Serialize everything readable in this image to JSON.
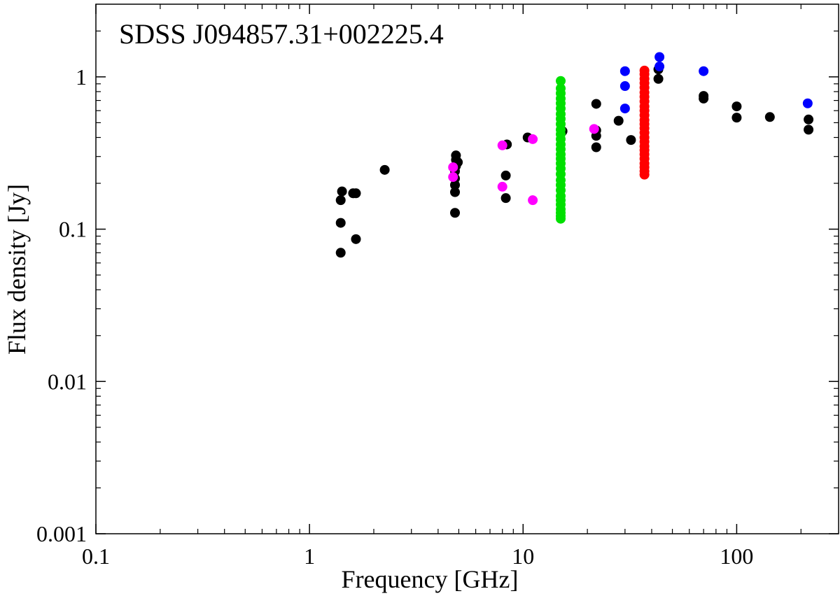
{
  "chart_data": {
    "type": "scatter",
    "title": "SDSS J094857.31+002225.4",
    "xlabel": "Frequency [GHz]",
    "ylabel": "Flux density [Jy]",
    "xscale": "log",
    "yscale": "log",
    "xlim": [
      0.1,
      300
    ],
    "ylim": [
      0.001,
      3
    ],
    "x_ticks": [
      {
        "value": 0.1,
        "label": "0.1"
      },
      {
        "value": 1,
        "label": "1"
      },
      {
        "value": 10,
        "label": "10"
      },
      {
        "value": 100,
        "label": "100"
      }
    ],
    "y_ticks": [
      {
        "value": 0.001,
        "label": "0.001"
      },
      {
        "value": 0.01,
        "label": "0.01"
      },
      {
        "value": 0.1,
        "label": "0.1"
      },
      {
        "value": 1,
        "label": "1"
      }
    ],
    "grid": false,
    "series": [
      {
        "color": "#000000",
        "points": [
          [
            1.4,
            0.07
          ],
          [
            1.4,
            0.11
          ],
          [
            1.4,
            0.155
          ],
          [
            1.42,
            0.177
          ],
          [
            1.6,
            0.172
          ],
          [
            1.65,
            0.086
          ],
          [
            1.65,
            0.172
          ],
          [
            2.25,
            0.245
          ],
          [
            4.8,
            0.128
          ],
          [
            4.8,
            0.175
          ],
          [
            4.8,
            0.195
          ],
          [
            4.8,
            0.215
          ],
          [
            4.8,
            0.24
          ],
          [
            4.85,
            0.26
          ],
          [
            4.85,
            0.285
          ],
          [
            4.85,
            0.305
          ],
          [
            4.95,
            0.275
          ],
          [
            8.3,
            0.16
          ],
          [
            8.3,
            0.225
          ],
          [
            8.4,
            0.36
          ],
          [
            10.5,
            0.4
          ],
          [
            15.3,
            0.44
          ],
          [
            22,
            0.345
          ],
          [
            22,
            0.41
          ],
          [
            22,
            0.445
          ],
          [
            22,
            0.665
          ],
          [
            28,
            0.515
          ],
          [
            32,
            0.385
          ],
          [
            43,
            0.97
          ],
          [
            43,
            1.12
          ],
          [
            70,
            0.72
          ],
          [
            70,
            0.75
          ],
          [
            100,
            0.54
          ],
          [
            100,
            0.64
          ],
          [
            143,
            0.545
          ],
          [
            217,
            0.45
          ],
          [
            217,
            0.525
          ]
        ]
      },
      {
        "color": "#ff00ff",
        "points": [
          [
            4.7,
            0.22
          ],
          [
            4.7,
            0.255
          ],
          [
            8.0,
            0.19
          ],
          [
            8.0,
            0.355
          ],
          [
            11.1,
            0.155
          ],
          [
            11.1,
            0.39
          ],
          [
            21.5,
            0.455
          ]
        ]
      },
      {
        "color": "#00e000",
        "points": [
          [
            15,
            0.117
          ],
          [
            15,
            0.122
          ],
          [
            15,
            0.128
          ],
          [
            15,
            0.135
          ],
          [
            15,
            0.145
          ],
          [
            15,
            0.155
          ],
          [
            15,
            0.165
          ],
          [
            15,
            0.18
          ],
          [
            15,
            0.195
          ],
          [
            15,
            0.21
          ],
          [
            15,
            0.23
          ],
          [
            15,
            0.25
          ],
          [
            15,
            0.27
          ],
          [
            15,
            0.29
          ],
          [
            15,
            0.31
          ],
          [
            15,
            0.335
          ],
          [
            15,
            0.36
          ],
          [
            15,
            0.39
          ],
          [
            15,
            0.42
          ],
          [
            15,
            0.45
          ],
          [
            15,
            0.49
          ],
          [
            15,
            0.53
          ],
          [
            15,
            0.57
          ],
          [
            15,
            0.62
          ],
          [
            15,
            0.67
          ],
          [
            15,
            0.72
          ],
          [
            15,
            0.78
          ],
          [
            15,
            0.84
          ],
          [
            15,
            0.94
          ]
        ]
      },
      {
        "color": "#ff0000",
        "points": [
          [
            37,
            0.228
          ],
          [
            37,
            0.24
          ],
          [
            37,
            0.255
          ],
          [
            37,
            0.27
          ],
          [
            37,
            0.29
          ],
          [
            37,
            0.31
          ],
          [
            37,
            0.33
          ],
          [
            37,
            0.35
          ],
          [
            37,
            0.375
          ],
          [
            37,
            0.4
          ],
          [
            37,
            0.43
          ],
          [
            37,
            0.46
          ],
          [
            37,
            0.49
          ],
          [
            37,
            0.52
          ],
          [
            37,
            0.56
          ],
          [
            37,
            0.6
          ],
          [
            37,
            0.64
          ],
          [
            37,
            0.69
          ],
          [
            37,
            0.74
          ],
          [
            37,
            0.79
          ],
          [
            37,
            0.85
          ],
          [
            37,
            0.91
          ],
          [
            37,
            0.97
          ],
          [
            37,
            1.04
          ],
          [
            37,
            1.1
          ]
        ]
      },
      {
        "color": "#0000ff",
        "points": [
          [
            30,
            0.62
          ],
          [
            30,
            0.87
          ],
          [
            30,
            1.09
          ],
          [
            43.5,
            1.17
          ],
          [
            43.5,
            1.35
          ],
          [
            70,
            1.09
          ],
          [
            215,
            0.67
          ]
        ]
      }
    ]
  }
}
